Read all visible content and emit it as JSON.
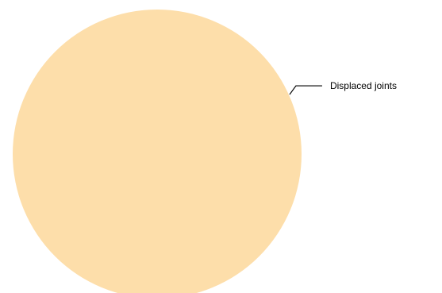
{
  "chart_data": {
    "type": "pie",
    "title": "",
    "slices": [
      {
        "label": "Displaced joints",
        "value": 100,
        "color": "#FDDEAA"
      }
    ],
    "legend": "none",
    "label_style": "leader-line"
  }
}
